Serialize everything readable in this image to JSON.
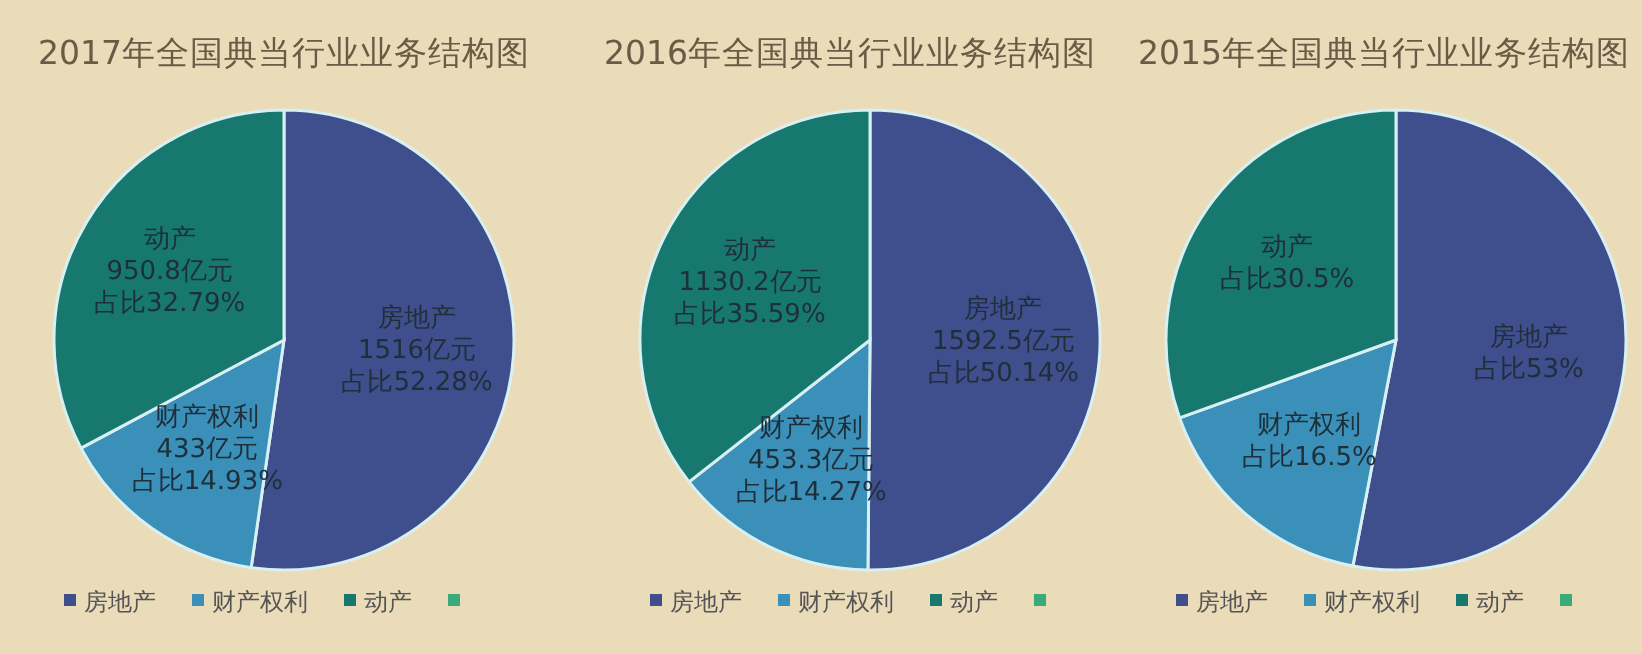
{
  "chart_data": [
    {
      "type": "pie",
      "title": "2017年全国典当行业业务结构图",
      "categories": [
        "房地产",
        "财产权利",
        "动产",
        null
      ],
      "values": [
        1516,
        433,
        950.8,
        0
      ],
      "colors": [
        "#3f4e8c",
        "#3a90b8",
        "#17786f",
        "#3aaa7a"
      ],
      "value_labels": [
        "1516亿元占比52.28%",
        "433亿元占比14.93%",
        "950.8亿元占比32.79%",
        null
      ],
      "legend": "bottom"
    },
    {
      "type": "pie",
      "title": "2016年全国典当行业业务结构图",
      "categories": [
        "房地产",
        "财产权利",
        "动产",
        null
      ],
      "values": [
        1592.5,
        453.3,
        1130.2,
        0
      ],
      "colors": [
        "#3f4e8c",
        "#3a90b8",
        "#17786f",
        "#3aaa7a"
      ],
      "value_labels": [
        "1592.5亿元占比50.14%",
        "453.3亿元占比14.27%",
        "1130.2亿元占比35.59%",
        null
      ],
      "legend": "bottom"
    },
    {
      "type": "pie",
      "title": "2015年全国典当行业业务结构图",
      "categories": [
        "房地产",
        "财产权利",
        "动产",
        null
      ],
      "values": [
        53,
        16.5,
        30.5,
        0
      ],
      "colors": [
        "#3f4e8c",
        "#3a90b8",
        "#17786f",
        "#3aaa7a"
      ],
      "value_labels": [
        "占比53%",
        "占比16.5%",
        "占比30.5%",
        null
      ],
      "legend": "bottom"
    }
  ]
}
